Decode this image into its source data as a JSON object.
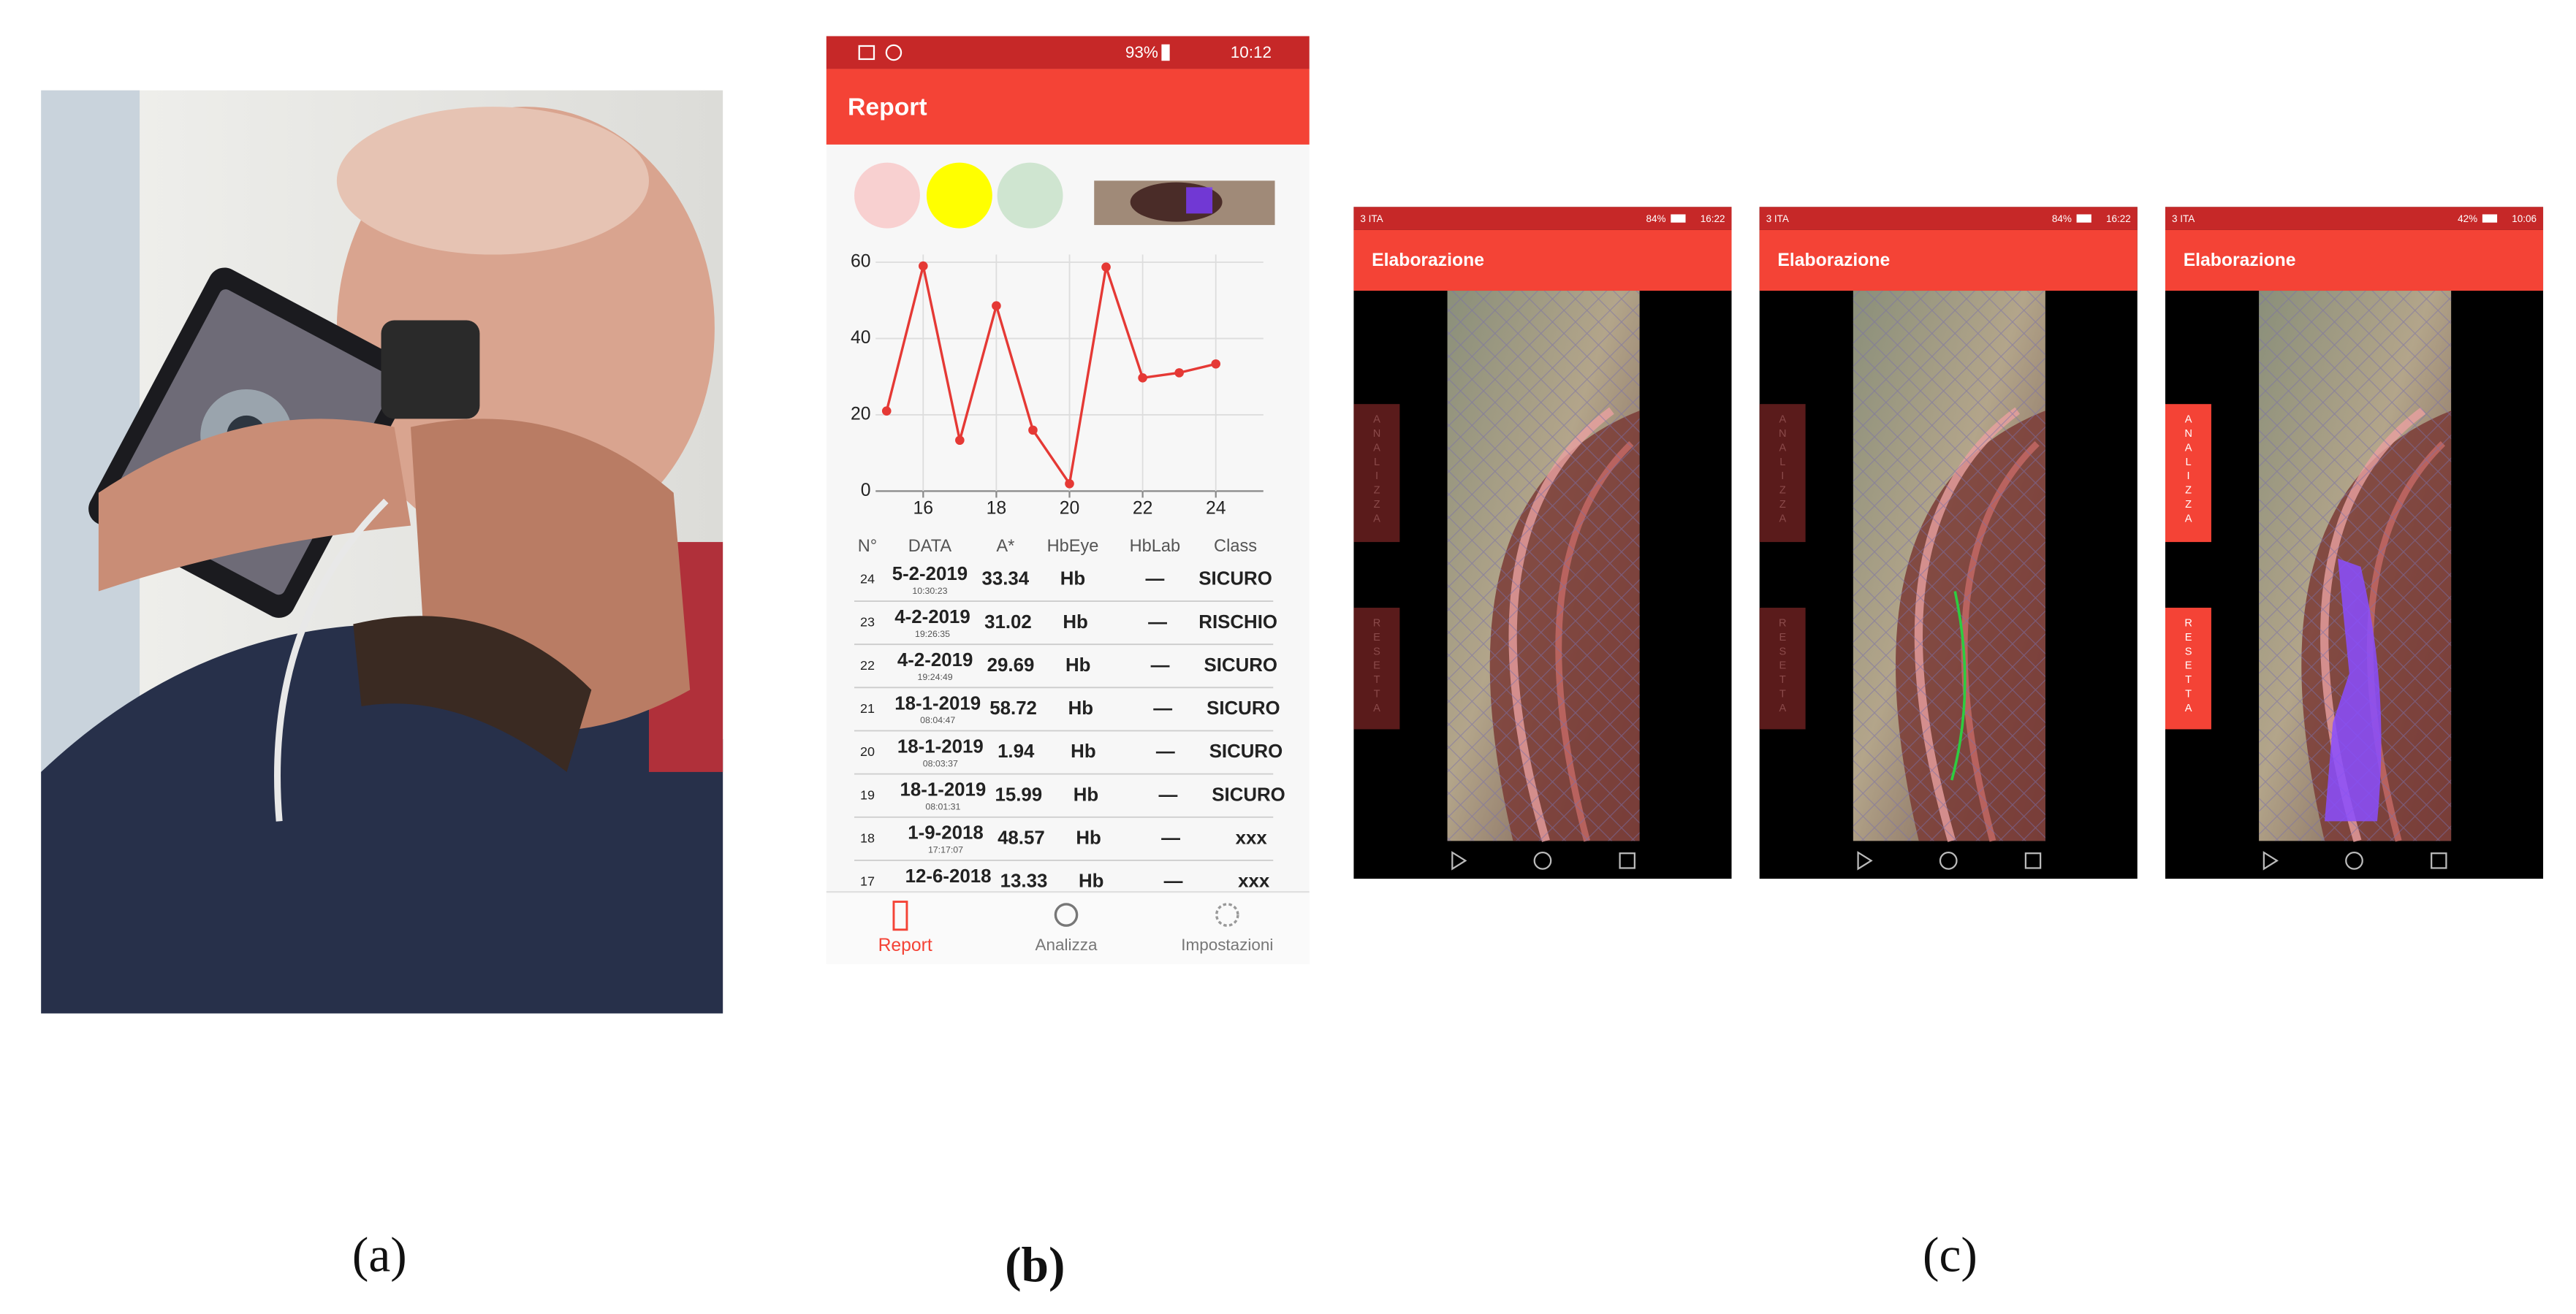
{
  "status_bar": {
    "battery": "93%",
    "time": "10:12"
  },
  "app_bar": {
    "title": "Report"
  },
  "chart_data": {
    "type": "line",
    "x": [
      15,
      16,
      17,
      18,
      19,
      20,
      21,
      22,
      23,
      24
    ],
    "values": [
      21,
      59,
      13.33,
      48.57,
      15.99,
      1.94,
      58.72,
      29.69,
      31.02,
      33.34
    ],
    "color": "#e53935",
    "xlim": [
      14.7,
      25.3
    ],
    "ylim": [
      0,
      62
    ],
    "xticks": [
      16,
      18,
      20,
      22,
      24
    ],
    "yticks": [
      0,
      20,
      40,
      60
    ],
    "grid": true
  },
  "table": {
    "columns": [
      "N°",
      "DATA",
      "A*",
      "HbEye",
      "HbLab",
      "Class"
    ],
    "rows": [
      {
        "n": 24,
        "date": "5-2-2019",
        "time": "10:30:23",
        "a": 33.34,
        "hb_eye": "Hb",
        "hb_lab": "—",
        "class": "SICURO"
      },
      {
        "n": 23,
        "date": "4-2-2019",
        "time": "19:26:35",
        "a": 31.02,
        "hb_eye": "Hb",
        "hb_lab": "—",
        "class": "RISCHIO"
      },
      {
        "n": 22,
        "date": "4-2-2019",
        "time": "19:24:49",
        "a": 29.69,
        "hb_eye": "Hb",
        "hb_lab": "—",
        "class": "SICURO"
      },
      {
        "n": 21,
        "date": "18-1-2019",
        "time": "08:04:47",
        "a": 58.72,
        "hb_eye": "Hb",
        "hb_lab": "—",
        "class": "SICURO"
      },
      {
        "n": 20,
        "date": "18-1-2019",
        "time": "08:03:37",
        "a": 1.94,
        "hb_eye": "Hb",
        "hb_lab": "—",
        "class": "SICURO"
      },
      {
        "n": 19,
        "date": "18-1-2019",
        "time": "08:01:31",
        "a": 15.99,
        "hb_eye": "Hb",
        "hb_lab": "—",
        "class": "SICURO"
      },
      {
        "n": 18,
        "date": "1-9-2018",
        "time": "17:17:07",
        "a": 48.57,
        "hb_eye": "Hb",
        "hb_lab": "—",
        "class": "xxx"
      },
      {
        "n": 17,
        "date": "12-6-2018",
        "a": 13.33,
        "hb_eye": "Hb",
        "hb_lab": "—",
        "class": "xxx"
      }
    ]
  },
  "nav": {
    "items": [
      "Report",
      "Analizza",
      "Impostazioni"
    ]
  },
  "processing_screens": [
    {
      "carrier": "3 ITA",
      "battery": "84%",
      "time": "16:22",
      "title": "Elaborazione",
      "buttons": [
        "ANALIZZA",
        "RESETTA"
      ]
    },
    {
      "carrier": "3 ITA",
      "battery": "84%",
      "time": "16:22",
      "title": "Elaborazione",
      "buttons": [
        "ANALIZZA",
        "RESETTA"
      ]
    },
    {
      "carrier": "3 ITA",
      "battery": "42%",
      "time": "10:06",
      "title": "Elaborazione",
      "buttons": [
        "ANALIZZA",
        "RESETTA"
      ]
    }
  ],
  "captions": [
    "(a)",
    "(b)",
    "(c)"
  ]
}
